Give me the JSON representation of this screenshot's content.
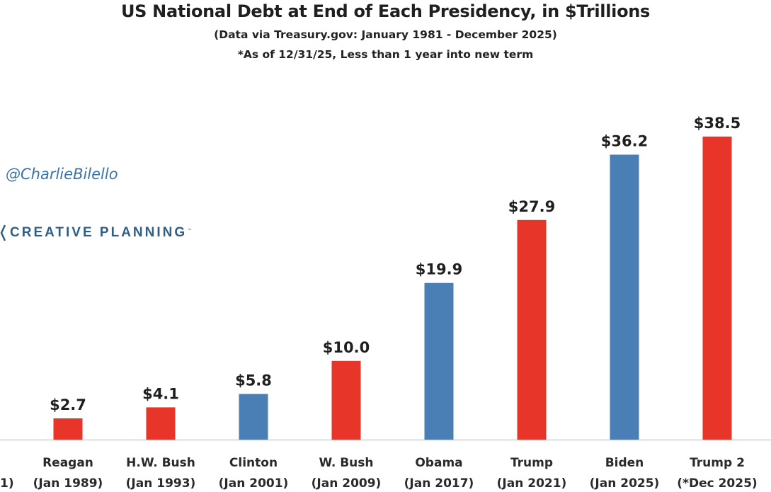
{
  "chart_data": {
    "type": "bar",
    "title": "US National Debt at End of Each Presidency, in $Trillions",
    "subtitle": "(Data via Treasury.gov: January 1981 - December 2025)",
    "note": "*As of 12/31/25, Less than 1 year into new term",
    "categories": [
      {
        "name": "Reagan",
        "date": "(Jan 1989)"
      },
      {
        "name": "H.W. Bush",
        "date": "(Jan 1993)"
      },
      {
        "name": "Clinton",
        "date": "(Jan 2001)"
      },
      {
        "name": "W. Bush",
        "date": "(Jan 2009)"
      },
      {
        "name": "Obama",
        "date": "(Jan 2017)"
      },
      {
        "name": "Trump",
        "date": "(Jan 2021)"
      },
      {
        "name": "Biden",
        "date": "(Jan 2025)"
      },
      {
        "name": "Trump 2",
        "date": "(*Dec 2025)"
      }
    ],
    "cropped_left_label": "1)",
    "values": [
      2.7,
      4.1,
      5.8,
      10.0,
      19.9,
      27.9,
      36.2,
      38.5
    ],
    "value_labels": [
      "$2.7",
      "$4.1",
      "$5.8",
      "$10.0",
      "$19.9",
      "$27.9",
      "$36.2",
      "$38.5"
    ],
    "party": [
      "R",
      "R",
      "D",
      "R",
      "D",
      "R",
      "D",
      "R"
    ],
    "colors": {
      "R": "#e8352a",
      "D": "#4a7fb5"
    },
    "ylim": [
      0,
      40
    ],
    "xlabel": "",
    "ylabel": "",
    "grid": false
  },
  "watermark": {
    "handle": "@CharlieBilello",
    "brand": "CREATIVE PLANNING"
  }
}
